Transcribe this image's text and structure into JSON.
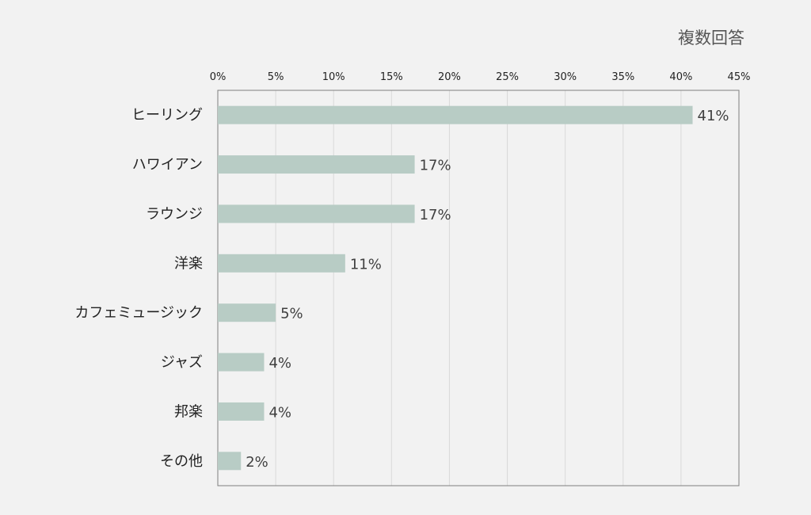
{
  "note": "複数回答",
  "colors": {
    "bar": "#b8ccc5",
    "grid": "#d9d9d9",
    "frame": "#7f7f7f",
    "text": "#222222",
    "label": "#404040",
    "background": "#f2f2f2"
  },
  "chart_data": {
    "type": "bar",
    "orientation": "horizontal",
    "categories": [
      "ヒーリング",
      "ハワイアン",
      "ラウンジ",
      "洋楽",
      "カフェミュージック",
      "ジャズ",
      "邦楽",
      "その他"
    ],
    "values": [
      41,
      17,
      17,
      11,
      5,
      4,
      4,
      2
    ],
    "value_labels": [
      "41%",
      "17%",
      "17%",
      "11%",
      "5%",
      "4%",
      "4%",
      "2%"
    ],
    "xlim": [
      0,
      45
    ],
    "xticks": [
      0,
      5,
      10,
      15,
      20,
      25,
      30,
      35,
      40,
      45
    ],
    "xtick_labels": [
      "0%",
      "5%",
      "10%",
      "15%",
      "20%",
      "25%",
      "30%",
      "35%",
      "40%",
      "45%"
    ],
    "x_axis_position": "top",
    "grid": "vertical",
    "legend": "none"
  }
}
